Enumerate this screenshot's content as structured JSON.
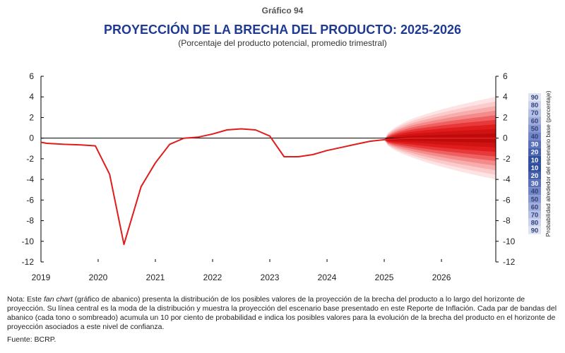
{
  "header": {
    "kicker": "Gráfico 94",
    "title": "PROYECCIÓN DE LA BRECHA DEL PRODUCTO: 2025-2026",
    "subtitle": "(Porcentaje del producto potencial, promedio trimestral)"
  },
  "chart_data": {
    "type": "line",
    "title": "PROYECCIÓN DE LA BRECHA DEL PRODUCTO: 2025-2026",
    "subtitle": "(Porcentaje del producto potencial, promedio trimestral)",
    "xlabel": "",
    "ylabel": "",
    "ylim": [
      -12,
      6
    ],
    "yticks": [
      6,
      4,
      2,
      0,
      -2,
      -4,
      -6,
      -8,
      -10,
      -12
    ],
    "xlim": [
      2019.0,
      2026.95
    ],
    "xticks": [
      "2019",
      "2020",
      "2021",
      "2022",
      "2023",
      "2024",
      "2025",
      "2026"
    ],
    "grid": false,
    "line_color": "#e01c1c",
    "series": [
      {
        "x": [
          2019.0,
          2019.1,
          2019.4,
          2019.7,
          2019.95,
          2020.2,
          2020.45,
          2020.75,
          2021.0,
          2021.25,
          2021.5,
          2021.75,
          2022.0,
          2022.25,
          2022.5,
          2022.75,
          2023.0,
          2023.25,
          2023.5,
          2023.75,
          2024.0,
          2024.25,
          2024.5,
          2024.75,
          2025.0,
          2025.25,
          2025.5,
          2025.75,
          2026.0,
          2026.25,
          2026.5,
          2026.75,
          2026.95
        ],
        "values": [
          -0.4,
          -0.5,
          -0.6,
          -0.65,
          -0.75,
          -3.5,
          -10.3,
          -4.7,
          -2.4,
          -0.6,
          0.0,
          0.1,
          0.4,
          0.8,
          0.9,
          0.8,
          0.2,
          -1.8,
          -1.8,
          -1.6,
          -1.2,
          -0.9,
          -0.6,
          -0.3,
          -0.15,
          -0.05,
          0.0,
          0.0,
          0.0,
          0.0,
          0.0,
          0.0,
          0.0
        ]
      }
    ],
    "fan": {
      "start_x": 2025.0,
      "end_x": 2026.95,
      "outer_half_width_at_end": 4.0,
      "colors": [
        "#fde3e3",
        "#fbcaca",
        "#f8adad",
        "#f48a8a",
        "#ef6161",
        "#e8393a",
        "#e01c1c",
        "#cf1212",
        "#bd0a0a"
      ]
    },
    "probability_scale": {
      "label": "Probabilidad alrededor del escenario base (porcentaje)",
      "values": [
        "90",
        "80",
        "70",
        "60",
        "50",
        "40",
        "30",
        "20",
        "10",
        "10",
        "20",
        "30",
        "40",
        "50",
        "60",
        "70",
        "80",
        "90"
      ],
      "colors": [
        "#dfe4f4",
        "#cbd3ee",
        "#b6c1e6",
        "#a1aedc",
        "#8a99d1",
        "#7285c6",
        "#5a70b9",
        "#4460ac",
        "#2f4e9e",
        "#2f4e9e",
        "#4460ac",
        "#5a70b9",
        "#7285c6",
        "#8a99d1",
        "#a1aedc",
        "#b6c1e6",
        "#cbd3ee",
        "#dfe4f4"
      ]
    }
  },
  "footer": {
    "note_prefix": "Nota: Este ",
    "note_emph": "fan chart",
    "note_rest": " (gráfico de abanico) presenta la distribución de los posibles valores de la proyección de la brecha del producto a lo largo del horizonte de proyección. Su línea central es la moda de la distribución y muestra la proyección del escenario base presentado en este Reporte de Inflación. Cada par de bandas del abanico (cada tono o sombreado) acumula un 10 por ciento de probabilidad e indica los posibles valores para la evolución de la brecha del producto en el horizonte de proyección asociados a este nivel de confianza.",
    "source": "Fuente: BCRP."
  }
}
